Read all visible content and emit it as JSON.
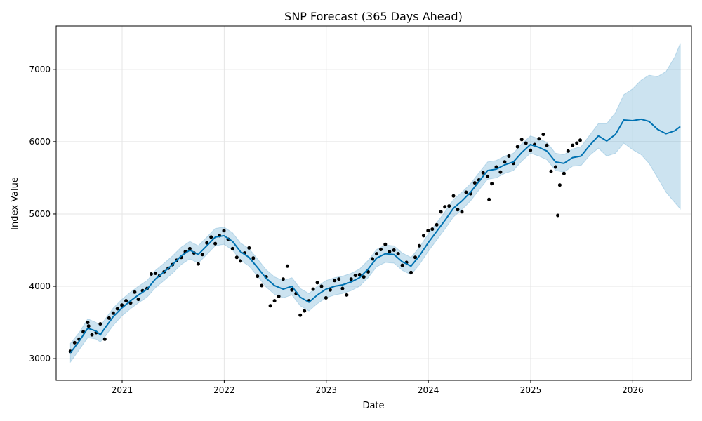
{
  "chart_data": {
    "type": "line",
    "title": "SNP Forecast (365 Days Ahead)",
    "xlabel": "Date",
    "ylabel": "Index Value",
    "x_ticks": [
      "2021",
      "2022",
      "2023",
      "2024",
      "2025",
      "2026"
    ],
    "y_ticks": [
      3000,
      4000,
      5000,
      6000,
      7000
    ],
    "xlim": [
      "2020-05-10",
      "2026-07-30"
    ],
    "ylim": [
      2700,
      7600
    ],
    "grid": true,
    "colors": {
      "forecast_line": "#0072B2",
      "uncertainty_band": "#0072B2",
      "observed_points": "#000000",
      "grid": "#e5e5e5"
    },
    "series": [
      {
        "kind": "observed_points",
        "x": [
          "2020-06-30",
          "2020-07-15",
          "2020-07-31",
          "2020-08-15",
          "2020-08-31",
          "2020-09-03",
          "2020-09-15",
          "2020-09-30",
          "2020-10-15",
          "2020-10-31",
          "2020-11-15",
          "2020-11-30",
          "2020-12-15",
          "2020-12-31",
          "2021-01-15",
          "2021-01-31",
          "2021-02-15",
          "2021-02-28",
          "2021-03-15",
          "2021-03-31",
          "2021-04-15",
          "2021-04-30",
          "2021-05-15",
          "2021-05-31",
          "2021-06-15",
          "2021-06-30",
          "2021-07-15",
          "2021-07-31",
          "2021-08-15",
          "2021-08-31",
          "2021-09-15",
          "2021-09-30",
          "2021-10-15",
          "2021-10-31",
          "2021-11-15",
          "2021-11-30",
          "2021-12-15",
          "2021-12-31",
          "2022-01-15",
          "2022-01-31",
          "2022-02-15",
          "2022-02-28",
          "2022-03-15",
          "2022-03-31",
          "2022-04-15",
          "2022-04-30",
          "2022-05-15",
          "2022-05-31",
          "2022-06-15",
          "2022-06-30",
          "2022-07-15",
          "2022-07-31",
          "2022-08-15",
          "2022-08-31",
          "2022-09-15",
          "2022-09-30",
          "2022-10-15",
          "2022-10-31",
          "2022-11-15",
          "2022-11-30",
          "2022-12-15",
          "2022-12-31",
          "2023-01-15",
          "2023-01-31",
          "2023-02-15",
          "2023-02-28",
          "2023-03-15",
          "2023-03-31",
          "2023-04-15",
          "2023-04-30",
          "2023-05-15",
          "2023-05-31",
          "2023-06-15",
          "2023-06-30",
          "2023-07-15",
          "2023-07-31",
          "2023-08-15",
          "2023-08-31",
          "2023-09-15",
          "2023-09-30",
          "2023-10-15",
          "2023-10-31",
          "2023-11-15",
          "2023-11-30",
          "2023-12-15",
          "2023-12-31",
          "2024-01-15",
          "2024-01-31",
          "2024-02-15",
          "2024-02-29",
          "2024-03-15",
          "2024-03-31",
          "2024-04-15",
          "2024-04-30",
          "2024-05-15",
          "2024-05-31",
          "2024-06-15",
          "2024-06-30",
          "2024-07-15",
          "2024-07-31",
          "2024-08-05",
          "2024-08-15",
          "2024-08-31",
          "2024-09-15",
          "2024-09-30",
          "2024-10-15",
          "2024-10-31",
          "2024-11-15",
          "2024-11-30",
          "2024-12-15",
          "2024-12-31",
          "2025-01-15",
          "2025-01-31",
          "2025-02-15",
          "2025-02-28",
          "2025-03-15",
          "2025-03-31",
          "2025-04-08",
          "2025-04-15",
          "2025-04-30",
          "2025-05-15",
          "2025-05-31",
          "2025-06-15",
          "2025-06-27"
        ],
        "y": [
          3100,
          3220,
          3270,
          3370,
          3500,
          3450,
          3330,
          3360,
          3480,
          3270,
          3560,
          3630,
          3690,
          3740,
          3800,
          3770,
          3920,
          3820,
          3940,
          3970,
          4170,
          4180,
          4150,
          4200,
          4250,
          4300,
          4360,
          4400,
          4480,
          4520,
          4460,
          4310,
          4440,
          4600,
          4680,
          4590,
          4700,
          4770,
          4650,
          4520,
          4400,
          4350,
          4460,
          4530,
          4390,
          4140,
          4010,
          4130,
          3730,
          3800,
          3860,
          4100,
          4280,
          3950,
          3900,
          3600,
          3660,
          3800,
          3960,
          4050,
          4000,
          3840,
          3950,
          4080,
          4100,
          3970,
          3880,
          4100,
          4150,
          4160,
          4130,
          4200,
          4380,
          4450,
          4510,
          4580,
          4480,
          4500,
          4450,
          4290,
          4330,
          4190,
          4400,
          4560,
          4700,
          4770,
          4790,
          4850,
          5030,
          5100,
          5110,
          5250,
          5060,
          5030,
          5300,
          5280,
          5430,
          5470,
          5570,
          5520,
          5200,
          5420,
          5650,
          5580,
          5720,
          5800,
          5700,
          5930,
          6030,
          5980,
          5880,
          5960,
          6040,
          6100,
          5950,
          5590,
          5650,
          4980,
          5400,
          5560,
          5870,
          5950,
          5980,
          6020
        ]
      },
      {
        "kind": "forecast",
        "x": [
          "2020-06-30",
          "2020-07-31",
          "2020-08-31",
          "2020-09-30",
          "2020-10-15",
          "2020-10-31",
          "2020-11-30",
          "2020-12-31",
          "2021-01-31",
          "2021-02-28",
          "2021-03-31",
          "2021-04-30",
          "2021-05-31",
          "2021-06-30",
          "2021-07-31",
          "2021-08-31",
          "2021-09-30",
          "2021-10-31",
          "2021-11-30",
          "2021-12-31",
          "2022-01-31",
          "2022-02-28",
          "2022-03-31",
          "2022-04-30",
          "2022-05-31",
          "2022-06-30",
          "2022-07-31",
          "2022-08-31",
          "2022-09-30",
          "2022-10-31",
          "2022-11-30",
          "2022-12-31",
          "2023-01-31",
          "2023-02-28",
          "2023-03-31",
          "2023-04-30",
          "2023-05-31",
          "2023-06-30",
          "2023-07-31",
          "2023-08-31",
          "2023-09-30",
          "2023-10-31",
          "2023-11-30",
          "2023-12-31",
          "2024-01-31",
          "2024-02-29",
          "2024-03-31",
          "2024-04-30",
          "2024-05-31",
          "2024-06-30",
          "2024-07-31",
          "2024-08-31",
          "2024-09-30",
          "2024-10-31",
          "2024-11-30",
          "2024-12-31",
          "2025-01-31",
          "2025-02-28",
          "2025-03-31",
          "2025-04-30",
          "2025-05-31",
          "2025-06-30",
          "2025-07-31",
          "2025-08-31",
          "2025-09-30",
          "2025-10-31",
          "2025-11-30",
          "2025-12-31",
          "2026-01-31",
          "2026-02-28",
          "2026-03-31",
          "2026-04-30",
          "2026-05-31",
          "2026-06-20"
        ],
        "yhat": [
          3080,
          3240,
          3420,
          3380,
          3330,
          3420,
          3580,
          3700,
          3800,
          3880,
          3960,
          4100,
          4200,
          4300,
          4420,
          4500,
          4440,
          4560,
          4680,
          4700,
          4620,
          4480,
          4400,
          4260,
          4110,
          4010,
          3960,
          4000,
          3850,
          3780,
          3880,
          3960,
          4000,
          4020,
          4060,
          4120,
          4240,
          4390,
          4450,
          4440,
          4340,
          4280,
          4420,
          4600,
          4760,
          4910,
          5080,
          5180,
          5300,
          5450,
          5600,
          5620,
          5680,
          5720,
          5850,
          5960,
          5920,
          5870,
          5720,
          5700,
          5780,
          5800,
          5950,
          6080,
          6010,
          6100,
          6300,
          6290,
          6310,
          6280,
          6170,
          6110,
          6150,
          6210
        ],
        "yhat_lower": [
          2950,
          3120,
          3290,
          3270,
          3230,
          3300,
          3460,
          3590,
          3690,
          3770,
          3850,
          3980,
          4080,
          4180,
          4300,
          4380,
          4320,
          4440,
          4560,
          4580,
          4500,
          4360,
          4280,
          4140,
          3990,
          3890,
          3840,
          3880,
          3730,
          3660,
          3760,
          3840,
          3880,
          3900,
          3940,
          4000,
          4120,
          4270,
          4330,
          4320,
          4220,
          4160,
          4300,
          4480,
          4640,
          4790,
          4960,
          5060,
          5180,
          5330,
          5480,
          5500,
          5560,
          5600,
          5730,
          5840,
          5800,
          5750,
          5600,
          5580,
          5660,
          5670,
          5810,
          5910,
          5800,
          5840,
          5980,
          5890,
          5820,
          5700,
          5500,
          5300,
          5160,
          5070
        ],
        "yhat_upper": [
          3210,
          3360,
          3550,
          3500,
          3450,
          3540,
          3700,
          3820,
          3920,
          4000,
          4080,
          4220,
          4320,
          4420,
          4540,
          4620,
          4560,
          4680,
          4800,
          4820,
          4740,
          4600,
          4520,
          4380,
          4230,
          4130,
          4080,
          4120,
          3970,
          3900,
          4000,
          4080,
          4120,
          4140,
          4180,
          4240,
          4360,
          4510,
          4570,
          4560,
          4460,
          4400,
          4540,
          4720,
          4880,
          5030,
          5200,
          5300,
          5420,
          5570,
          5720,
          5740,
          5800,
          5840,
          5970,
          6080,
          6040,
          5990,
          5840,
          5820,
          5900,
          5930,
          6090,
          6250,
          6250,
          6400,
          6650,
          6730,
          6850,
          6920,
          6900,
          6970,
          7170,
          7360
        ]
      }
    ]
  }
}
